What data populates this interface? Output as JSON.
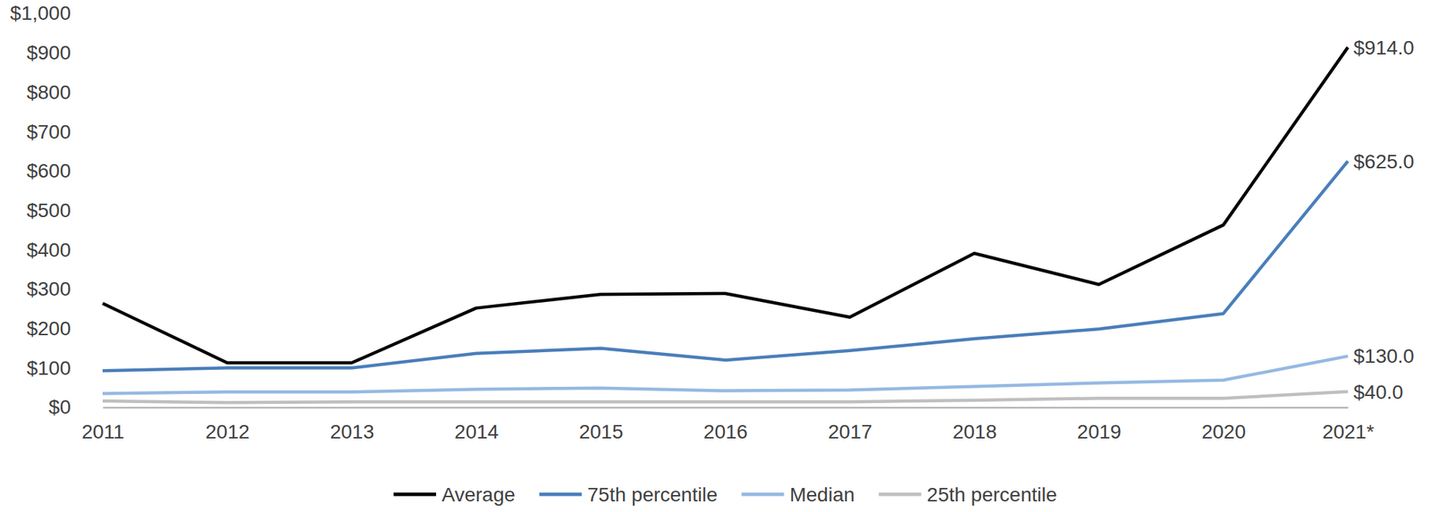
{
  "chart_data": {
    "type": "line",
    "categories": [
      "2011",
      "2012",
      "2013",
      "2014",
      "2015",
      "2016",
      "2017",
      "2018",
      "2019",
      "2020",
      "2021*"
    ],
    "series": [
      {
        "name": "Average",
        "color": "#000000",
        "values": [
          264,
          113,
          113,
          252,
          287,
          289,
          229,
          391,
          312,
          463,
          914
        ],
        "value_labels": [
          null,
          null,
          null,
          null,
          null,
          null,
          null,
          null,
          null,
          null,
          "$914.0"
        ]
      },
      {
        "name": "75th percentile",
        "color": "#4a7ebb",
        "values": [
          93,
          100,
          100,
          137,
          150,
          120,
          144,
          174,
          199,
          238,
          625
        ],
        "value_labels": [
          null,
          null,
          null,
          null,
          null,
          null,
          null,
          null,
          null,
          null,
          "$625.0"
        ]
      },
      {
        "name": "Median",
        "color": "#95b9e3",
        "values": [
          35,
          39,
          39,
          46,
          49,
          42,
          44,
          53,
          62,
          69,
          130
        ],
        "value_labels": [
          null,
          null,
          null,
          null,
          null,
          null,
          null,
          null,
          null,
          null,
          "$130.0"
        ]
      },
      {
        "name": "25th percentile",
        "color": "#bfbfbf",
        "values": [
          16,
          12,
          14,
          14,
          14,
          14,
          14,
          18,
          23,
          23,
          40
        ],
        "value_labels": [
          null,
          null,
          null,
          null,
          null,
          null,
          null,
          null,
          null,
          null,
          "$40.0"
        ]
      }
    ],
    "ylim": [
      0,
      1000
    ],
    "yticks": [
      {
        "value": 0,
        "label": "$0"
      },
      {
        "value": 100,
        "label": "$100"
      },
      {
        "value": 200,
        "label": "$200"
      },
      {
        "value": 300,
        "label": "$300"
      },
      {
        "value": 400,
        "label": "$400"
      },
      {
        "value": 500,
        "label": "$500"
      },
      {
        "value": 600,
        "label": "$600"
      },
      {
        "value": 700,
        "label": "$700"
      },
      {
        "value": 800,
        "label": "$800"
      },
      {
        "value": 900,
        "label": "$900"
      },
      {
        "value": 1000,
        "label": "$1,000"
      }
    ],
    "grid": false,
    "legend": "bottom"
  }
}
